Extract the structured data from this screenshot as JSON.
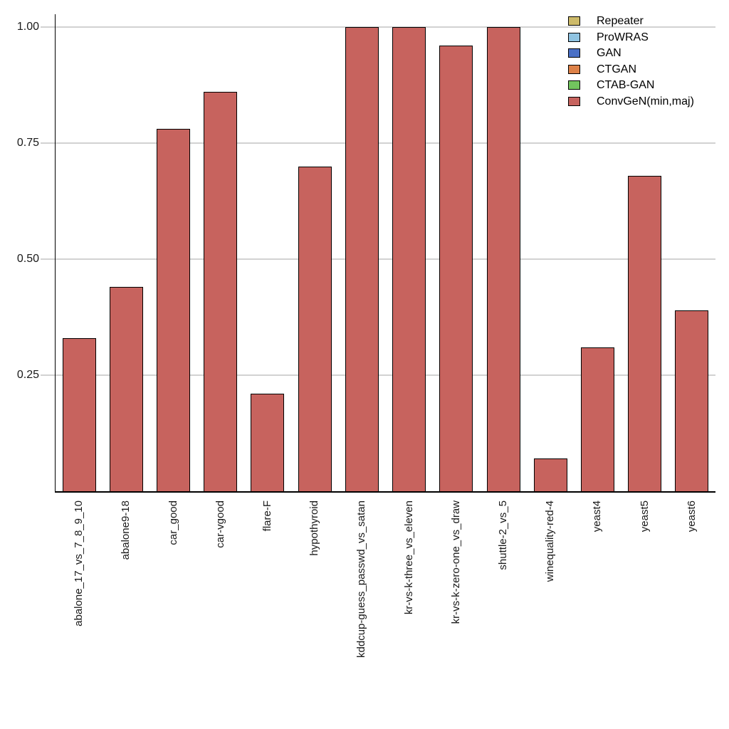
{
  "chart_data": {
    "type": "bar",
    "title": "",
    "xlabel": "",
    "ylabel": "",
    "categories": [
      "abalone_17_vs_7_8_9_10",
      "abalone9-18",
      "car_good",
      "car-vgood",
      "flare-F",
      "hypothyroid",
      "kddcup-guess_passwd_vs_satan",
      "kr-vs-k-three_vs_eleven",
      "kr-vs-k-zero-one_vs_draw",
      "shuttle-2_vs_5",
      "winequality-red-4",
      "yeast4",
      "yeast5",
      "yeast6"
    ],
    "series": [
      {
        "name": "ConvGeN(min,maj)",
        "color": "#c7635e",
        "values": [
          0.33,
          0.44,
          0.78,
          0.86,
          0.21,
          0.7,
          1.0,
          1.0,
          0.96,
          1.0,
          0.07,
          0.31,
          0.68,
          0.39
        ]
      }
    ],
    "ytick_labels": [
      "0.25",
      "0.50",
      "0.75",
      "1.00"
    ],
    "ytick_values": [
      0.25,
      0.5,
      0.75,
      1.0
    ],
    "ylim": [
      0,
      1.03
    ],
    "grid": "horizontal",
    "grid_color": "#d2d2d2",
    "bar_edge_color": "#000000",
    "legend": {
      "position": "top-right",
      "entries": [
        {
          "label": "Repeater",
          "color": "#cdba69"
        },
        {
          "label": "ProWRAS",
          "color": "#8fc3e1"
        },
        {
          "label": "GAN",
          "color": "#4a70c6"
        },
        {
          "label": "CTGAN",
          "color": "#dd8148"
        },
        {
          "label": "CTAB-GAN",
          "color": "#72c55e"
        },
        {
          "label": "ConvGeN(min,maj)",
          "color": "#c7635e"
        }
      ]
    }
  }
}
